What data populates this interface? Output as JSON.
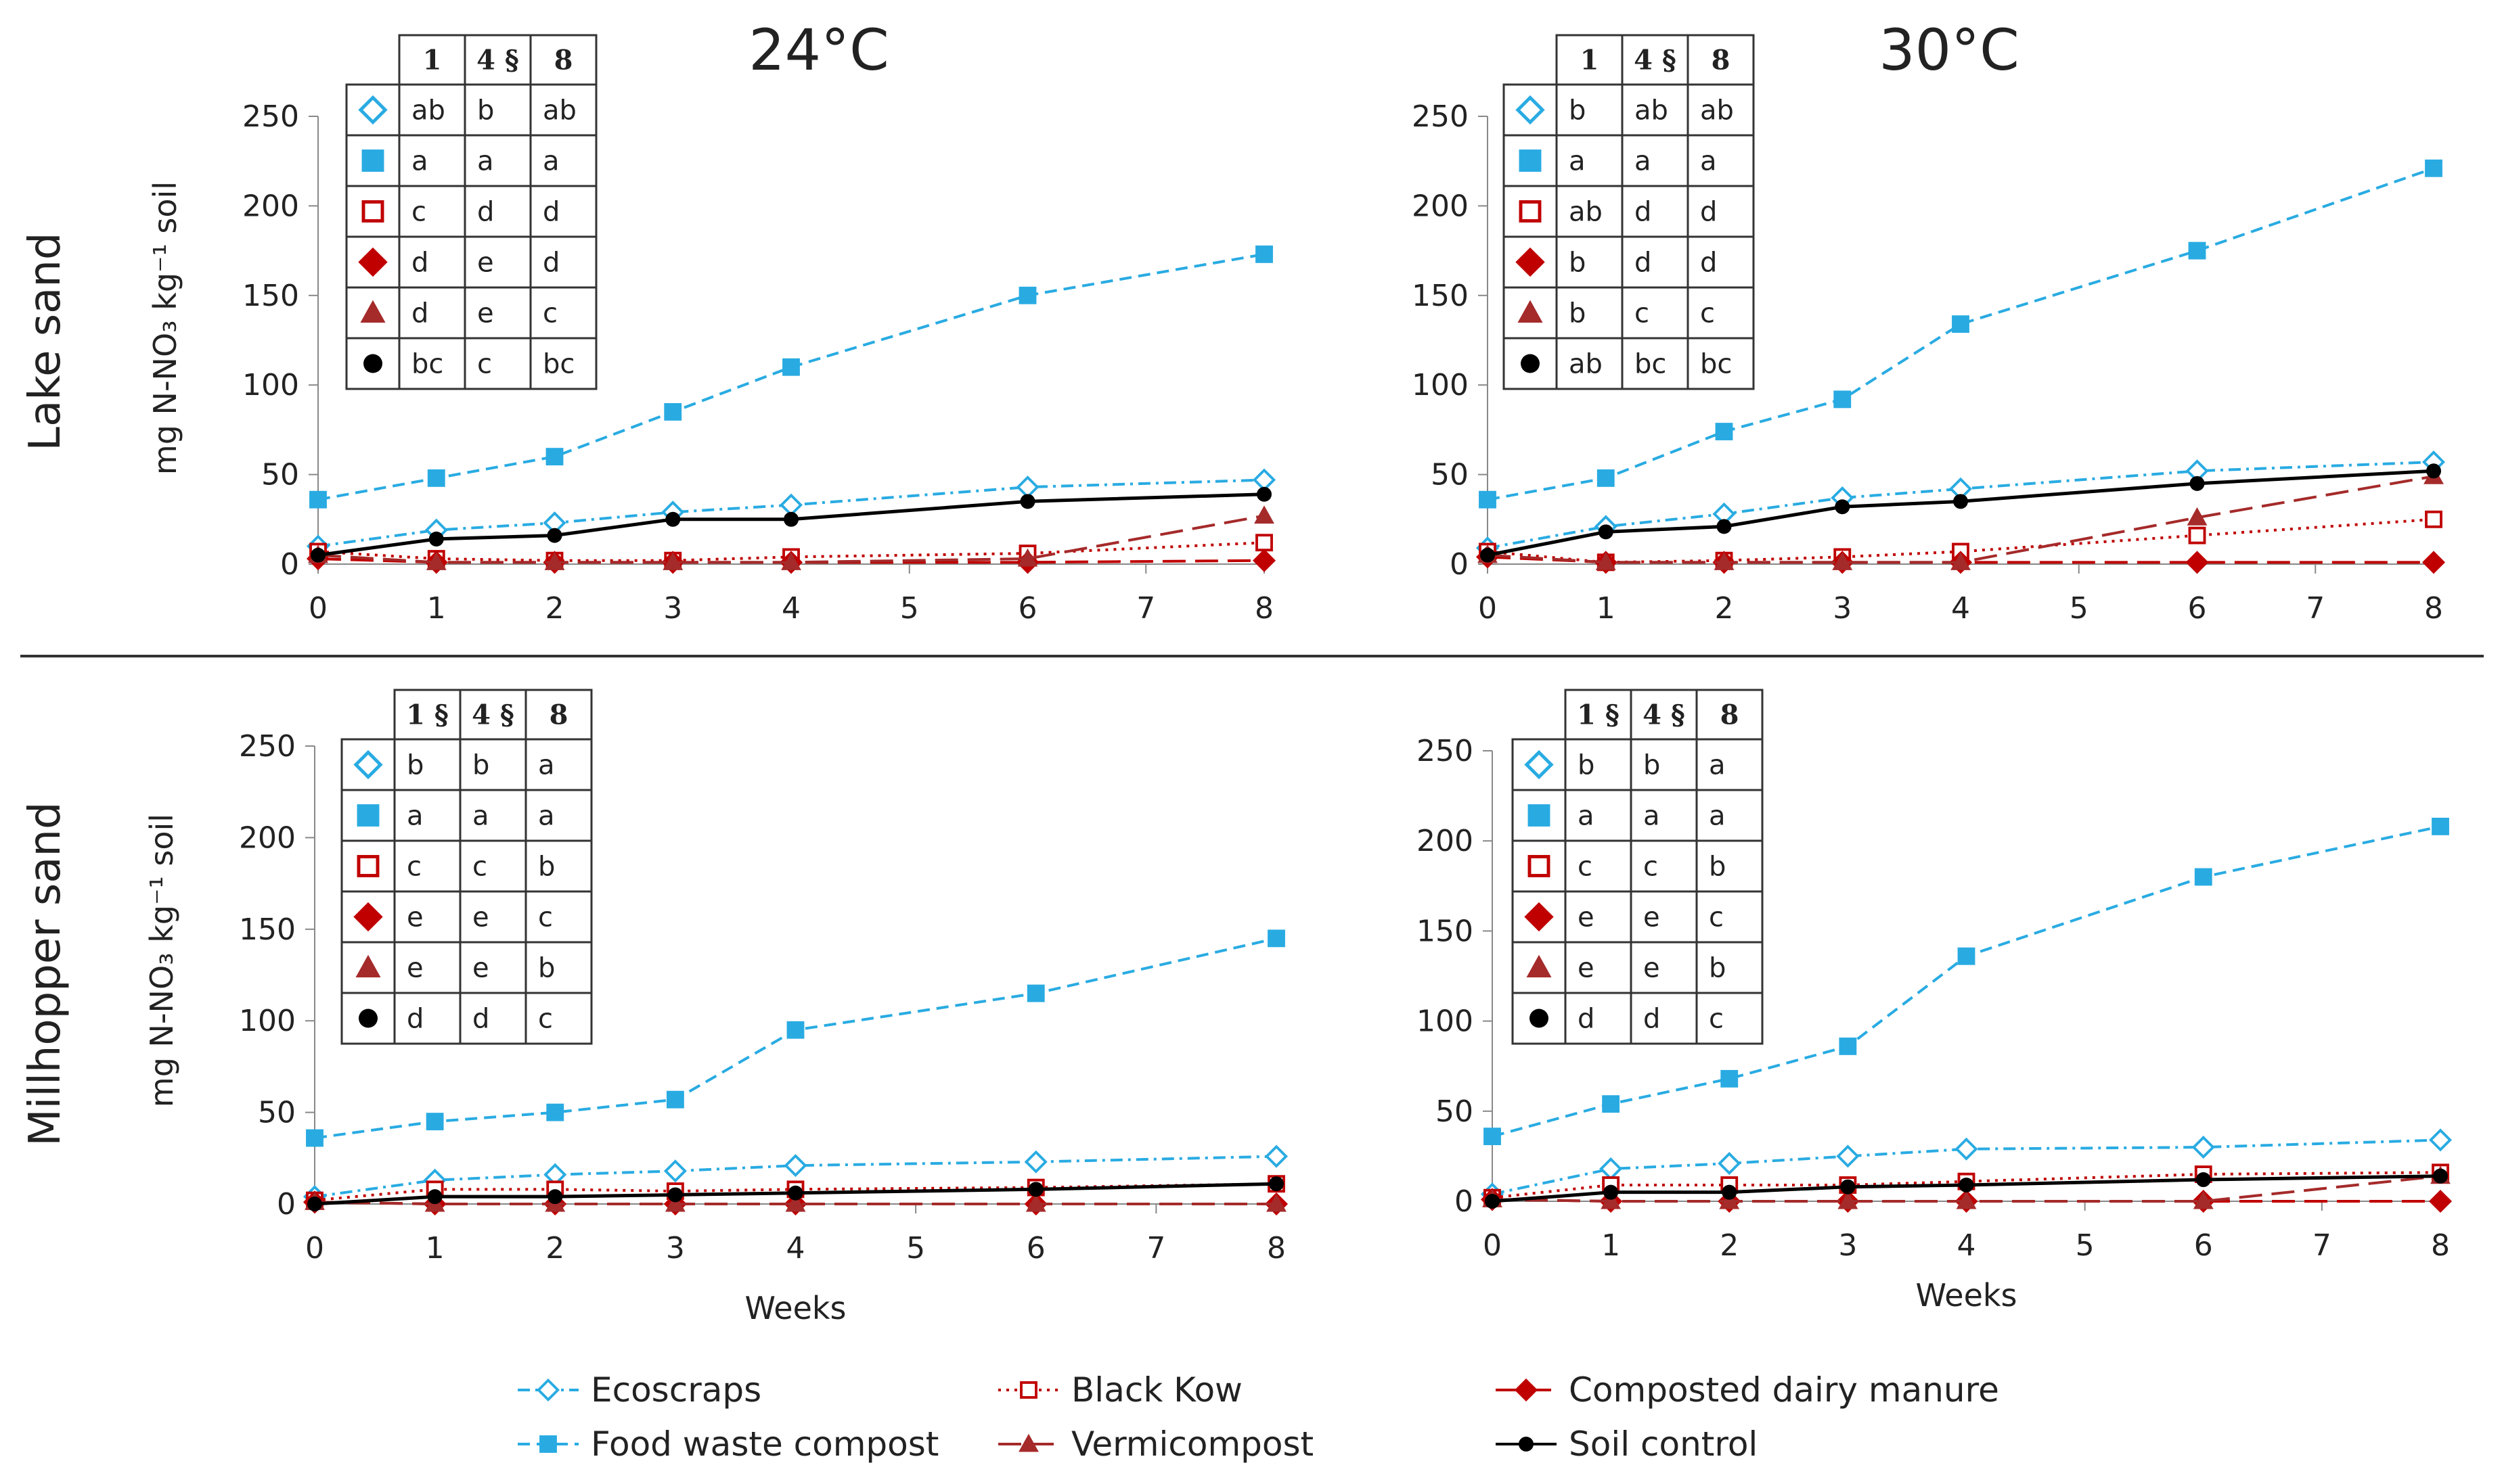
{
  "figure": {
    "column_titles": [
      "24°C",
      "30°C"
    ],
    "row_labels": [
      "Lake sand",
      "Millhopper sand"
    ],
    "x_axis_title": "Weeks",
    "y_axis_title": "mg N-NO₃ kg⁻¹ soil"
  },
  "series_style": [
    {
      "name": "Ecoscraps",
      "color": "#29abe2",
      "marker": "diamond-open",
      "dash": "dashdot"
    },
    {
      "name": "Food waste compost",
      "color": "#29abe2",
      "marker": "square-filled",
      "dash": "dash"
    },
    {
      "name": "Black Kow",
      "color": "#c00000",
      "marker": "square-open",
      "dash": "dot"
    },
    {
      "name": "Composted dairy manure",
      "color": "#c00000",
      "marker": "diamond-filled",
      "dash": "longdash"
    },
    {
      "name": "Vermicompost",
      "color": "#a52a2a",
      "marker": "triangle-filled",
      "dash": "longdash"
    },
    {
      "name": "Soil control",
      "color": "#000000",
      "marker": "circle-filled",
      "dash": "solid"
    }
  ],
  "chart_data": [
    {
      "type": "line",
      "title": "24°C",
      "row": "Lake sand",
      "xlabel": "",
      "ylabel": "mg N-NO₃ kg⁻¹ soil",
      "x": [
        0,
        1,
        2,
        3,
        4,
        6,
        8
      ],
      "x_ticks": [
        0,
        1,
        2,
        3,
        4,
        5,
        6,
        7,
        8
      ],
      "xlim": [
        0,
        8
      ],
      "ylim": [
        0,
        250
      ],
      "y_ticks": [
        0,
        50,
        100,
        150,
        200,
        250
      ],
      "series": [
        {
          "name": "Ecoscraps",
          "values": [
            10,
            19,
            23,
            29,
            33,
            43,
            47
          ]
        },
        {
          "name": "Food waste compost",
          "values": [
            36,
            48,
            60,
            85,
            110,
            150,
            173
          ]
        },
        {
          "name": "Black Kow",
          "values": [
            7,
            3,
            2,
            2,
            4,
            6,
            12
          ]
        },
        {
          "name": "Composted dairy manure",
          "values": [
            3,
            1,
            1,
            1,
            1,
            1,
            2
          ]
        },
        {
          "name": "Vermicompost",
          "values": [
            5,
            1,
            1,
            1,
            1,
            3,
            27
          ]
        },
        {
          "name": "Soil control",
          "values": [
            5,
            14,
            16,
            25,
            25,
            35,
            39
          ]
        }
      ],
      "letters_table": {
        "headers": [
          "1",
          "4 §",
          "8"
        ],
        "rows": [
          [
            "ab",
            "b",
            "ab"
          ],
          [
            "a",
            "a",
            "a"
          ],
          [
            "c",
            "d",
            "d"
          ],
          [
            "d",
            "e",
            "d"
          ],
          [
            "d",
            "e",
            "c"
          ],
          [
            "bc",
            "c",
            "bc"
          ]
        ]
      }
    },
    {
      "type": "line",
      "title": "30°C",
      "row": "Lake sand",
      "xlabel": "",
      "ylabel": "",
      "x": [
        0,
        1,
        2,
        3,
        4,
        6,
        8
      ],
      "x_ticks": [
        0,
        1,
        2,
        3,
        4,
        5,
        6,
        7,
        8
      ],
      "xlim": [
        0,
        8
      ],
      "ylim": [
        0,
        250
      ],
      "y_ticks": [
        0,
        50,
        100,
        150,
        200,
        250
      ],
      "series": [
        {
          "name": "Ecoscraps",
          "values": [
            9,
            21,
            28,
            37,
            42,
            52,
            57
          ]
        },
        {
          "name": "Food waste compost",
          "values": [
            36,
            48,
            74,
            92,
            134,
            175,
            221
          ]
        },
        {
          "name": "Black Kow",
          "values": [
            7,
            1,
            2,
            4,
            7,
            16,
            25
          ]
        },
        {
          "name": "Composted dairy manure",
          "values": [
            4,
            1,
            1,
            1,
            1,
            1,
            1
          ]
        },
        {
          "name": "Vermicompost",
          "values": [
            5,
            1,
            1,
            1,
            1,
            26,
            49
          ]
        },
        {
          "name": "Soil control",
          "values": [
            5,
            18,
            21,
            32,
            35,
            45,
            52
          ]
        }
      ],
      "letters_table": {
        "headers": [
          "1",
          "4 §",
          "8"
        ],
        "rows": [
          [
            "b",
            "ab",
            "ab"
          ],
          [
            "a",
            "a",
            "a"
          ],
          [
            "ab",
            "d",
            "d"
          ],
          [
            "b",
            "d",
            "d"
          ],
          [
            "b",
            "c",
            "c"
          ],
          [
            "ab",
            "bc",
            "bc"
          ]
        ]
      }
    },
    {
      "type": "line",
      "title": "",
      "row": "Millhopper sand",
      "xlabel": "Weeks",
      "ylabel": "mg N-NO₃ kg⁻¹ soil",
      "x": [
        0,
        1,
        2,
        3,
        4,
        6,
        8
      ],
      "x_ticks": [
        0,
        1,
        2,
        3,
        4,
        5,
        6,
        7,
        8
      ],
      "xlim": [
        0,
        8
      ],
      "ylim": [
        0,
        250
      ],
      "y_ticks": [
        0,
        50,
        100,
        150,
        200,
        250
      ],
      "series": [
        {
          "name": "Ecoscraps",
          "values": [
            4,
            13,
            16,
            18,
            21,
            23,
            26
          ]
        },
        {
          "name": "Food waste compost",
          "values": [
            36,
            45,
            50,
            57,
            95,
            115,
            145
          ]
        },
        {
          "name": "Black Kow",
          "values": [
            2,
            8,
            8,
            7,
            8,
            9,
            11
          ]
        },
        {
          "name": "Composted dairy manure",
          "values": [
            1,
            0,
            0,
            0,
            0,
            0,
            0
          ]
        },
        {
          "name": "Vermicompost",
          "values": [
            1,
            0,
            0,
            0,
            0,
            0,
            0
          ]
        },
        {
          "name": "Soil control",
          "values": [
            0,
            4,
            4,
            5,
            6,
            8,
            11
          ]
        }
      ],
      "letters_table": {
        "headers": [
          "1 §",
          "4 §",
          "8"
        ],
        "rows": [
          [
            "b",
            "b",
            "a"
          ],
          [
            "a",
            "a",
            "a"
          ],
          [
            "c",
            "c",
            "b"
          ],
          [
            "e",
            "e",
            "c"
          ],
          [
            "e",
            "e",
            "b"
          ],
          [
            "d",
            "d",
            "c"
          ]
        ]
      }
    },
    {
      "type": "line",
      "title": "",
      "row": "Millhopper sand",
      "xlabel": "Weeks",
      "ylabel": "",
      "x": [
        0,
        1,
        2,
        3,
        4,
        6,
        8
      ],
      "x_ticks": [
        0,
        1,
        2,
        3,
        4,
        5,
        6,
        7,
        8
      ],
      "xlim": [
        0,
        8
      ],
      "ylim": [
        0,
        250
      ],
      "y_ticks": [
        0,
        50,
        100,
        150,
        200,
        250
      ],
      "series": [
        {
          "name": "Ecoscraps",
          "values": [
            4,
            18,
            21,
            25,
            29,
            30,
            34
          ]
        },
        {
          "name": "Food waste compost",
          "values": [
            36,
            54,
            68,
            86,
            136,
            180,
            208
          ]
        },
        {
          "name": "Black Kow",
          "values": [
            2,
            9,
            9,
            9,
            11,
            15,
            16
          ]
        },
        {
          "name": "Composted dairy manure",
          "values": [
            1,
            0,
            0,
            0,
            0,
            0,
            0
          ]
        },
        {
          "name": "Vermicompost",
          "values": [
            1,
            0,
            0,
            0,
            0,
            0,
            14
          ]
        },
        {
          "name": "Soil control",
          "values": [
            0,
            5,
            5,
            8,
            9,
            12,
            14
          ]
        }
      ],
      "letters_table": {
        "headers": [
          "1 §",
          "4 §",
          "8"
        ],
        "rows": [
          [
            "b",
            "b",
            "a"
          ],
          [
            "a",
            "a",
            "a"
          ],
          [
            "c",
            "c",
            "b"
          ],
          [
            "e",
            "e",
            "c"
          ],
          [
            "e",
            "e",
            "b"
          ],
          [
            "d",
            "d",
            "c"
          ]
        ]
      }
    }
  ],
  "legend": {
    "items": [
      "Ecoscraps",
      "Food waste compost",
      "Black Kow",
      "Vermicompost",
      "Composted dairy manure",
      "Soil control"
    ]
  }
}
